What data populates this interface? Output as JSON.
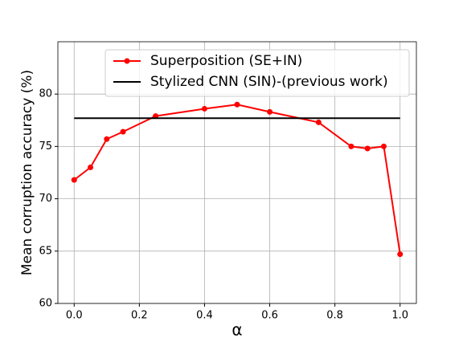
{
  "chart_data": {
    "type": "line",
    "xlabel": "α",
    "ylabel": "Mean corruption accuracy (%)",
    "series": [
      {
        "name": "Superposition (SE+IN)",
        "color": "#ff0000",
        "marker": true,
        "x": [
          0,
          0.05,
          0.1,
          0.15,
          0.25,
          0.4,
          0.5,
          0.6,
          0.75,
          0.85,
          0.9,
          0.95,
          1
        ],
        "values": [
          71.8,
          73.0,
          75.7,
          76.4,
          77.9,
          78.6,
          79.0,
          78.3,
          77.3,
          75.0,
          74.8,
          75.0,
          64.7
        ]
      },
      {
        "name": "Stylized CNN (SIN)-(previous work)",
        "color": "#000000",
        "marker": false,
        "x": [
          0,
          1
        ],
        "values": [
          77.7,
          77.7
        ]
      }
    ],
    "xlim": [
      -0.05,
      1.05
    ],
    "xticks": [
      {
        "value": 0,
        "label": "0.0"
      },
      0.2,
      0.4,
      0.6,
      0.8,
      {
        "value": 1,
        "label": "1.0"
      }
    ],
    "ylim": [
      60,
      85
    ],
    "yticks": [
      60,
      65,
      70,
      75,
      80
    ],
    "grid": true,
    "legend": "upper center"
  }
}
